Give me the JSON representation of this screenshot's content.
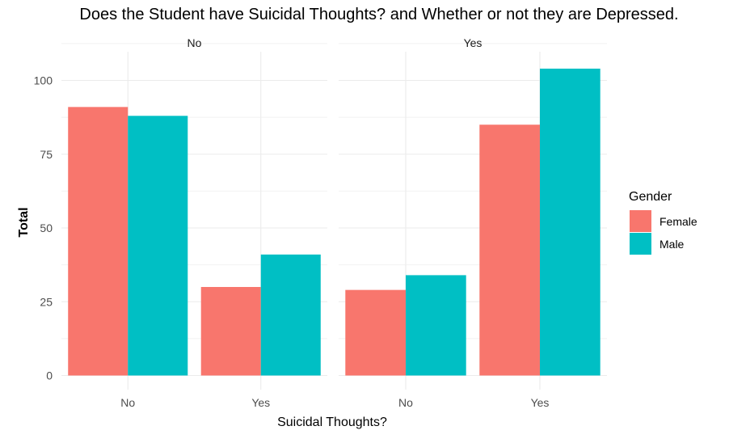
{
  "chart_data": {
    "type": "bar",
    "title": "Does the Student have Suicidal Thoughts? and Whether or not they are Depressed.",
    "xlabel": "Suicidal Thoughts?",
    "ylabel": "Total",
    "ylim": [
      0,
      110
    ],
    "yticks": [
      0,
      25,
      50,
      75,
      100
    ],
    "categories": [
      "No",
      "Yes"
    ],
    "facets": [
      {
        "label": "No",
        "series": [
          {
            "name": "Female",
            "values": [
              91,
              30
            ]
          },
          {
            "name": "Male",
            "values": [
              88,
              41
            ]
          }
        ]
      },
      {
        "label": "Yes",
        "series": [
          {
            "name": "Female",
            "values": [
              29,
              85
            ]
          },
          {
            "name": "Male",
            "values": [
              34,
              104
            ]
          }
        ]
      }
    ],
    "legend": {
      "title": "Gender",
      "position": "right",
      "entries": [
        {
          "name": "Female",
          "color": "#F8766D"
        },
        {
          "name": "Male",
          "color": "#00BFC4"
        }
      ]
    },
    "grid": true,
    "colors": {
      "Female": "#F8766D",
      "Male": "#00BFC4"
    }
  }
}
